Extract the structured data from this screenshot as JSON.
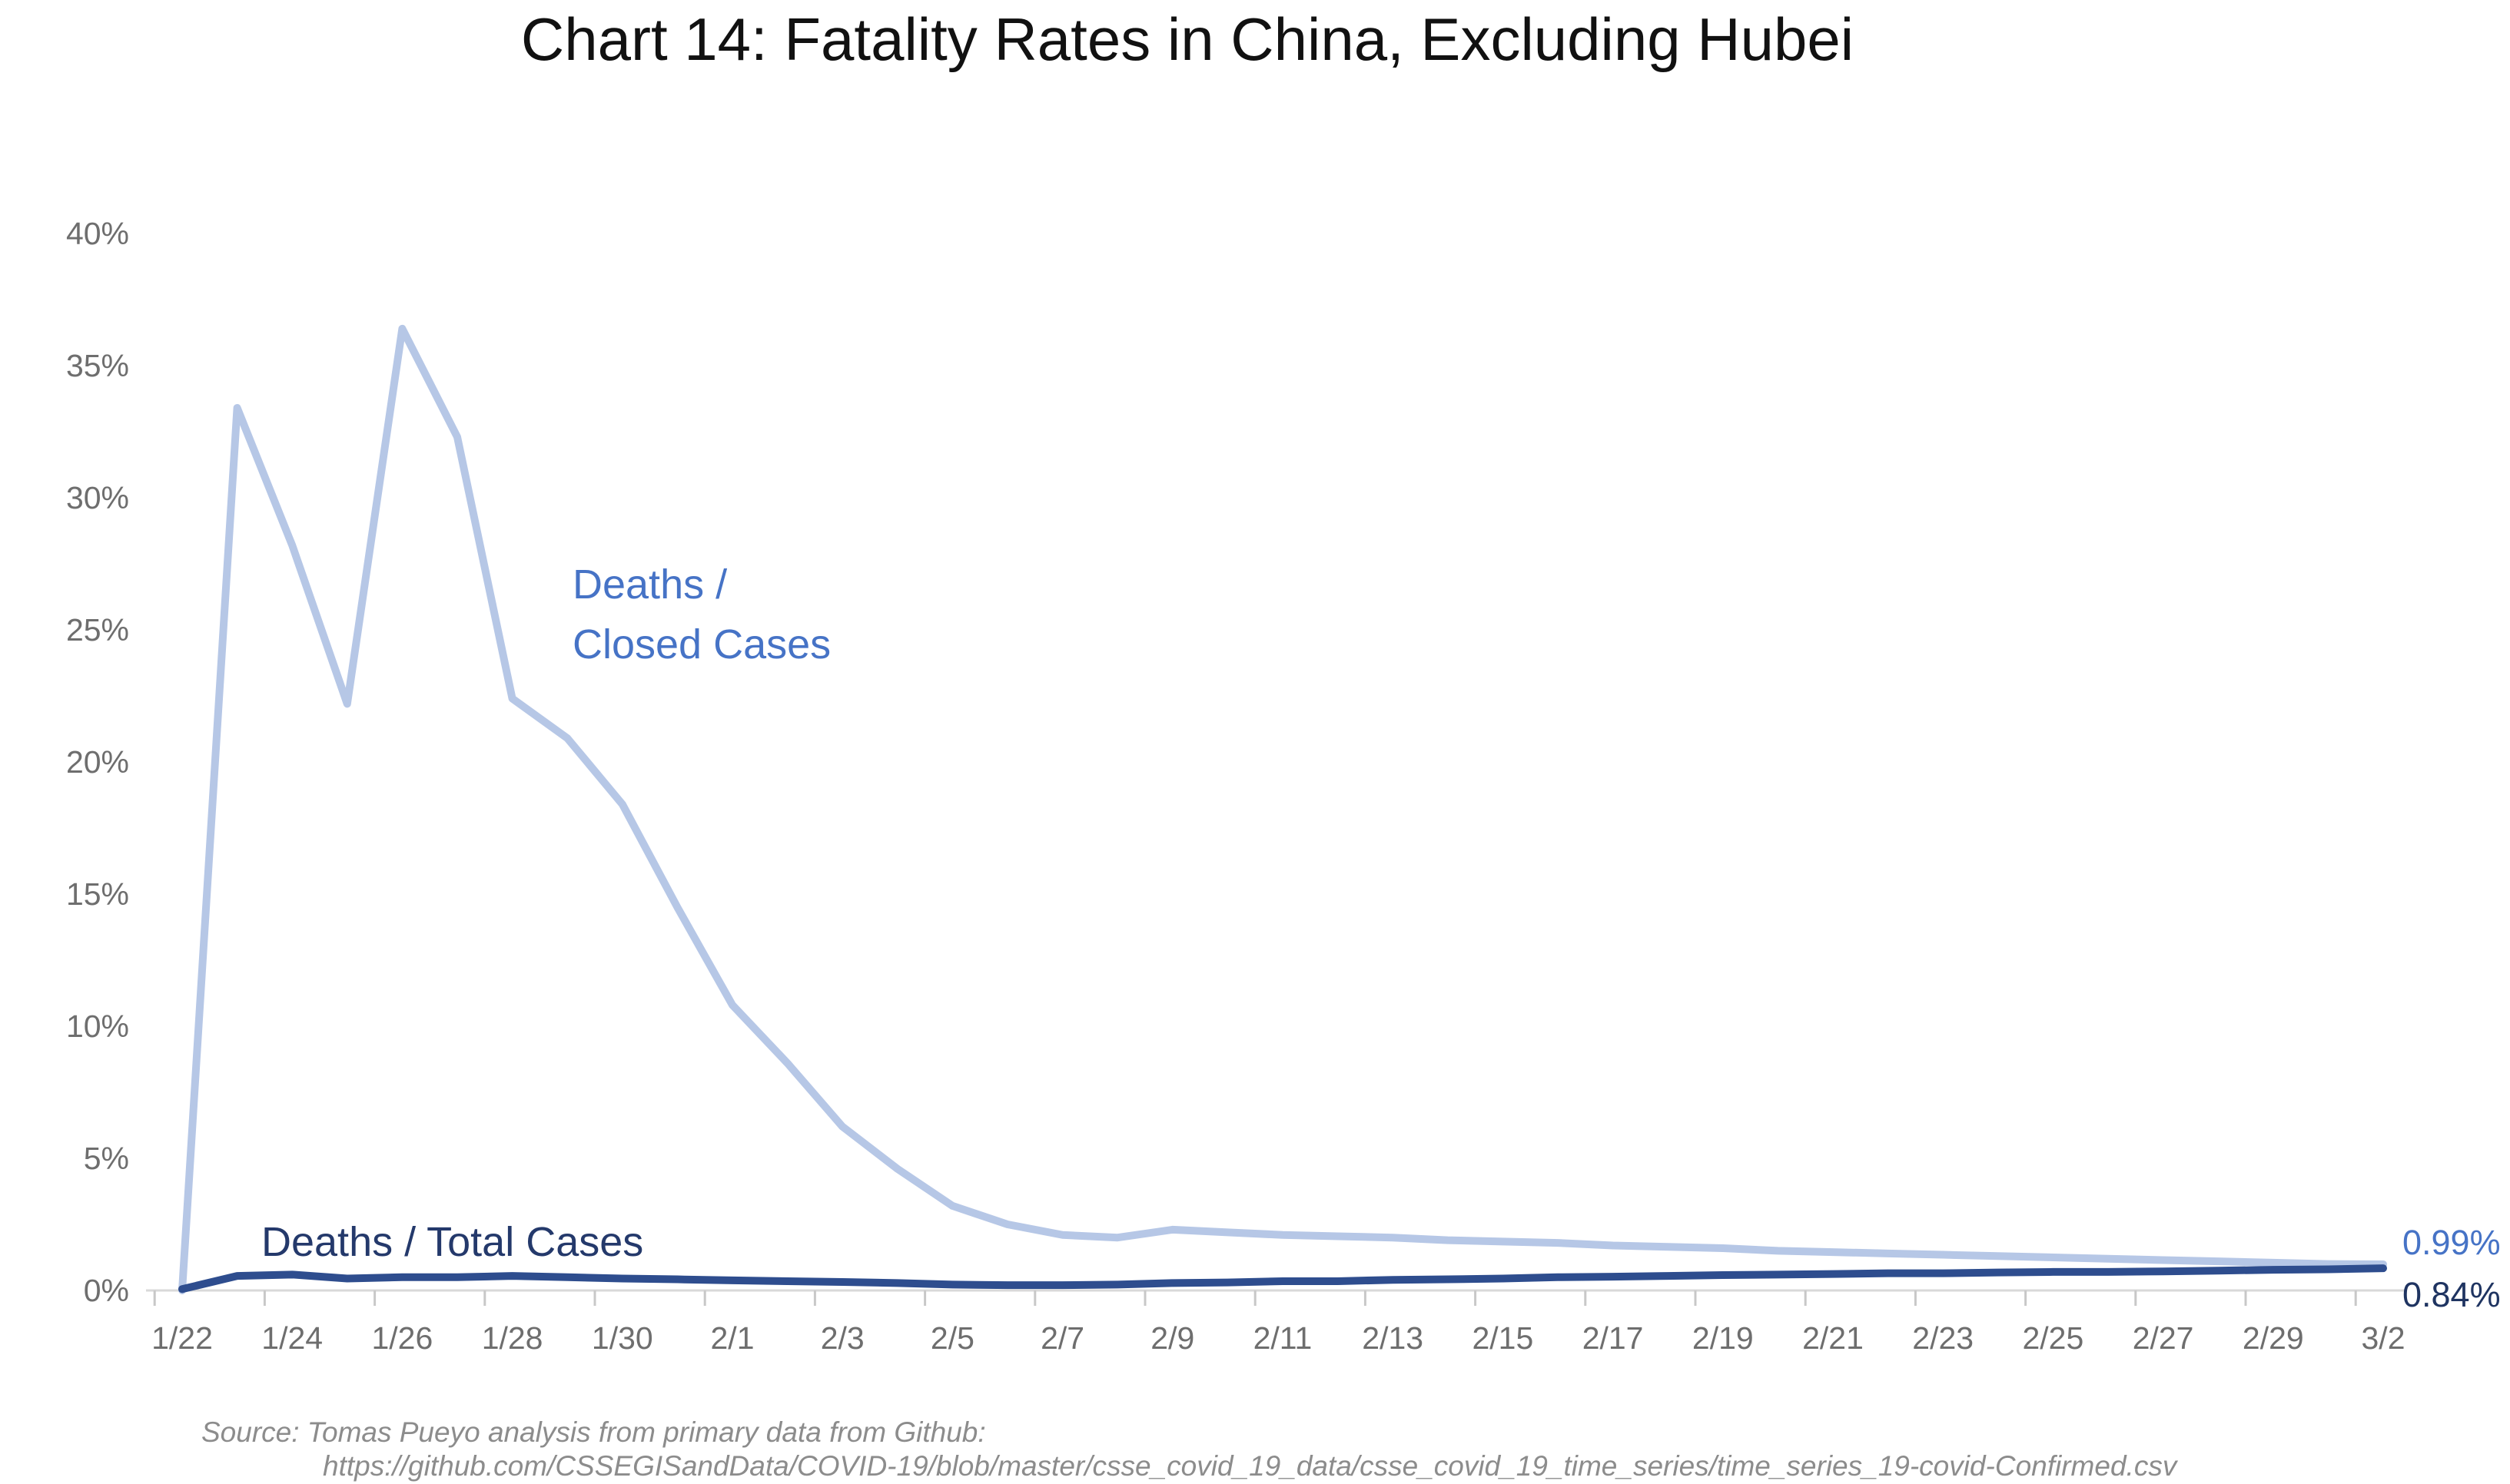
{
  "title": "Chart 14: Fatality Rates in China, Excluding Hubei",
  "colors": {
    "closed_line": "#b6c7e6",
    "total_line": "#2e4d8e",
    "closed_text": "#4673c6",
    "total_text": "#24396b",
    "end_closed_text": "#4673c6",
    "end_total_text": "#1f3461",
    "axis_line": "#d9d9d9",
    "tick_mark": "#c8c8c8",
    "axis_text": "#6e6e6e"
  },
  "annotations": {
    "closed_line1": "Deaths /",
    "closed_line2": "Closed Cases",
    "total_label": "Deaths / Total Cases"
  },
  "end_labels": {
    "closed": "0.99%",
    "total": "0.84%"
  },
  "source": {
    "line1": "Source: Tomas Pueyo analysis from primary data from Github:",
    "line2": "https://github.com/CSSEGISandData/COVID-19/blob/master/csse_covid_19_data/csse_covid_19_time_series/time_series_19-covid-Confirmed.csv"
  },
  "y_axis": {
    "labels": [
      "0%",
      "5%",
      "10%",
      "15%",
      "20%",
      "25%",
      "30%",
      "35%",
      "40%"
    ],
    "values": [
      0,
      5,
      10,
      15,
      20,
      25,
      30,
      35,
      40
    ]
  },
  "x_axis": {
    "labels": [
      "1/22",
      "1/24",
      "1/26",
      "1/28",
      "1/30",
      "2/1",
      "2/3",
      "2/5",
      "2/7",
      "2/9",
      "2/11",
      "2/13",
      "2/15",
      "2/17",
      "2/19",
      "2/21",
      "2/23",
      "2/25",
      "2/27",
      "2/29",
      "3/2"
    ]
  },
  "chart_data": {
    "type": "line",
    "title": "Chart 14: Fatality Rates in China, Excluding Hubei",
    "xlabel": "",
    "ylabel": "",
    "ylim": [
      0,
      40
    ],
    "grid": false,
    "legend_position": "inline-annotations",
    "x": [
      "1/22",
      "1/23",
      "1/24",
      "1/25",
      "1/26",
      "1/27",
      "1/28",
      "1/29",
      "1/30",
      "1/31",
      "2/1",
      "2/2",
      "2/3",
      "2/4",
      "2/5",
      "2/6",
      "2/7",
      "2/8",
      "2/9",
      "2/10",
      "2/11",
      "2/12",
      "2/13",
      "2/14",
      "2/15",
      "2/16",
      "2/17",
      "2/18",
      "2/19",
      "2/20",
      "2/21",
      "2/22",
      "2/23",
      "2/24",
      "2/25",
      "2/26",
      "2/27",
      "2/28",
      "2/29",
      "3/1",
      "3/2"
    ],
    "series": [
      {
        "name": "Deaths / Closed Cases",
        "color": "#b6c7e6",
        "end_value_label": "0.99%",
        "values": [
          0.0,
          33.4,
          28.2,
          22.2,
          36.4,
          32.3,
          22.4,
          20.9,
          18.4,
          14.5,
          10.8,
          8.6,
          6.2,
          4.6,
          3.2,
          2.5,
          2.1,
          2.0,
          2.3,
          2.2,
          2.1,
          2.05,
          2.0,
          1.9,
          1.85,
          1.8,
          1.7,
          1.65,
          1.6,
          1.5,
          1.45,
          1.4,
          1.35,
          1.3,
          1.25,
          1.2,
          1.15,
          1.1,
          1.05,
          1.0,
          0.99
        ]
      },
      {
        "name": "Deaths / Total Cases",
        "color": "#2e4d8e",
        "end_value_label": "0.84%",
        "values": [
          0.05,
          0.55,
          0.6,
          0.45,
          0.5,
          0.5,
          0.55,
          0.5,
          0.45,
          0.42,
          0.38,
          0.35,
          0.32,
          0.28,
          0.22,
          0.2,
          0.2,
          0.22,
          0.28,
          0.3,
          0.35,
          0.35,
          0.4,
          0.42,
          0.45,
          0.5,
          0.52,
          0.55,
          0.58,
          0.6,
          0.62,
          0.65,
          0.65,
          0.68,
          0.7,
          0.7,
          0.72,
          0.75,
          0.78,
          0.8,
          0.84
        ]
      }
    ]
  }
}
